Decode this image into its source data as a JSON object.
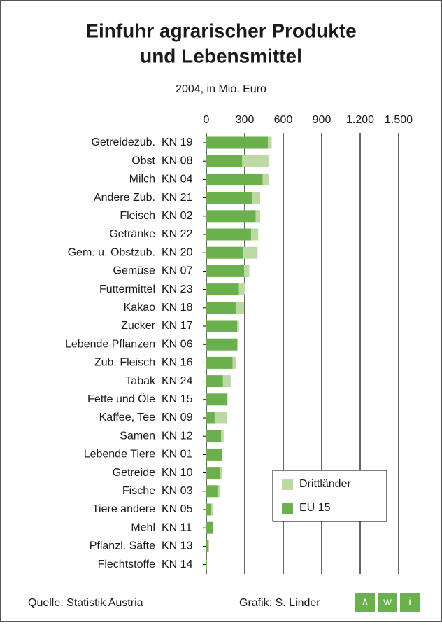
{
  "chart_data": {
    "type": "bar",
    "orientation": "horizontal",
    "stacked": true,
    "title": [
      "Einfuhr agrarischer Produkte",
      "und Lebensmittel"
    ],
    "subtitle": "2004, in Mio. Euro",
    "categories": [
      "Getreidezub.",
      "Obst",
      "Milch",
      "Andere Zub.",
      "Fleisch",
      "Getränke",
      "Gem. u. Obstzub.",
      "Gemüse",
      "Futtermittel",
      "Kakao",
      "Zucker",
      "Lebende Pflanzen",
      "Zub. Fleisch",
      "Tabak",
      "Fette und Öle",
      "Kaffee, Tee",
      "Samen",
      "Lebende Tiere",
      "Getreide",
      "Fische",
      "Tiere andere",
      "Mehl",
      "Pflanzl. Säfte",
      "Flechtstoffe"
    ],
    "codes": [
      "KN 19",
      "KN 08",
      "KN 04",
      "KN 21",
      "KN 02",
      "KN 22",
      "KN 20",
      "KN 07",
      "KN 23",
      "KN 18",
      "KN 17",
      "KN 06",
      "KN 16",
      "KN 24",
      "KN 15",
      "KN 09",
      "KN 12",
      "KN 01",
      "KN 10",
      "KN 03",
      "KN 05",
      "KN 11",
      "KN 13",
      "KN 14"
    ],
    "series": [
      {
        "name": "Drittländer",
        "color": "#bcd9a3",
        "values": [
          30,
          205,
          45,
          65,
          35,
          55,
          110,
          40,
          45,
          60,
          15,
          10,
          25,
          60,
          0,
          95,
          20,
          0,
          15,
          20,
          17,
          0,
          6,
          1
        ]
      },
      {
        "name": "EU 15",
        "color": "#6ab04c",
        "values": [
          480,
          280,
          440,
          355,
          385,
          350,
          290,
          295,
          255,
          235,
          240,
          240,
          205,
          130,
          165,
          65,
          115,
          125,
          105,
          87,
          38,
          55,
          16,
          5
        ]
      }
    ],
    "xlim": [
      0,
      1500
    ],
    "xticks": [
      0,
      300,
      600,
      900,
      {
        "value": 1200,
        "label": "1.200"
      },
      {
        "value": 1500,
        "label": "1.500"
      }
    ],
    "grid": true,
    "legend": "lower right",
    "source": "Quelle: Statistik Austria",
    "credit": "Grafik: S. Linder",
    "logo": [
      "∧",
      "w",
      "i"
    ]
  }
}
